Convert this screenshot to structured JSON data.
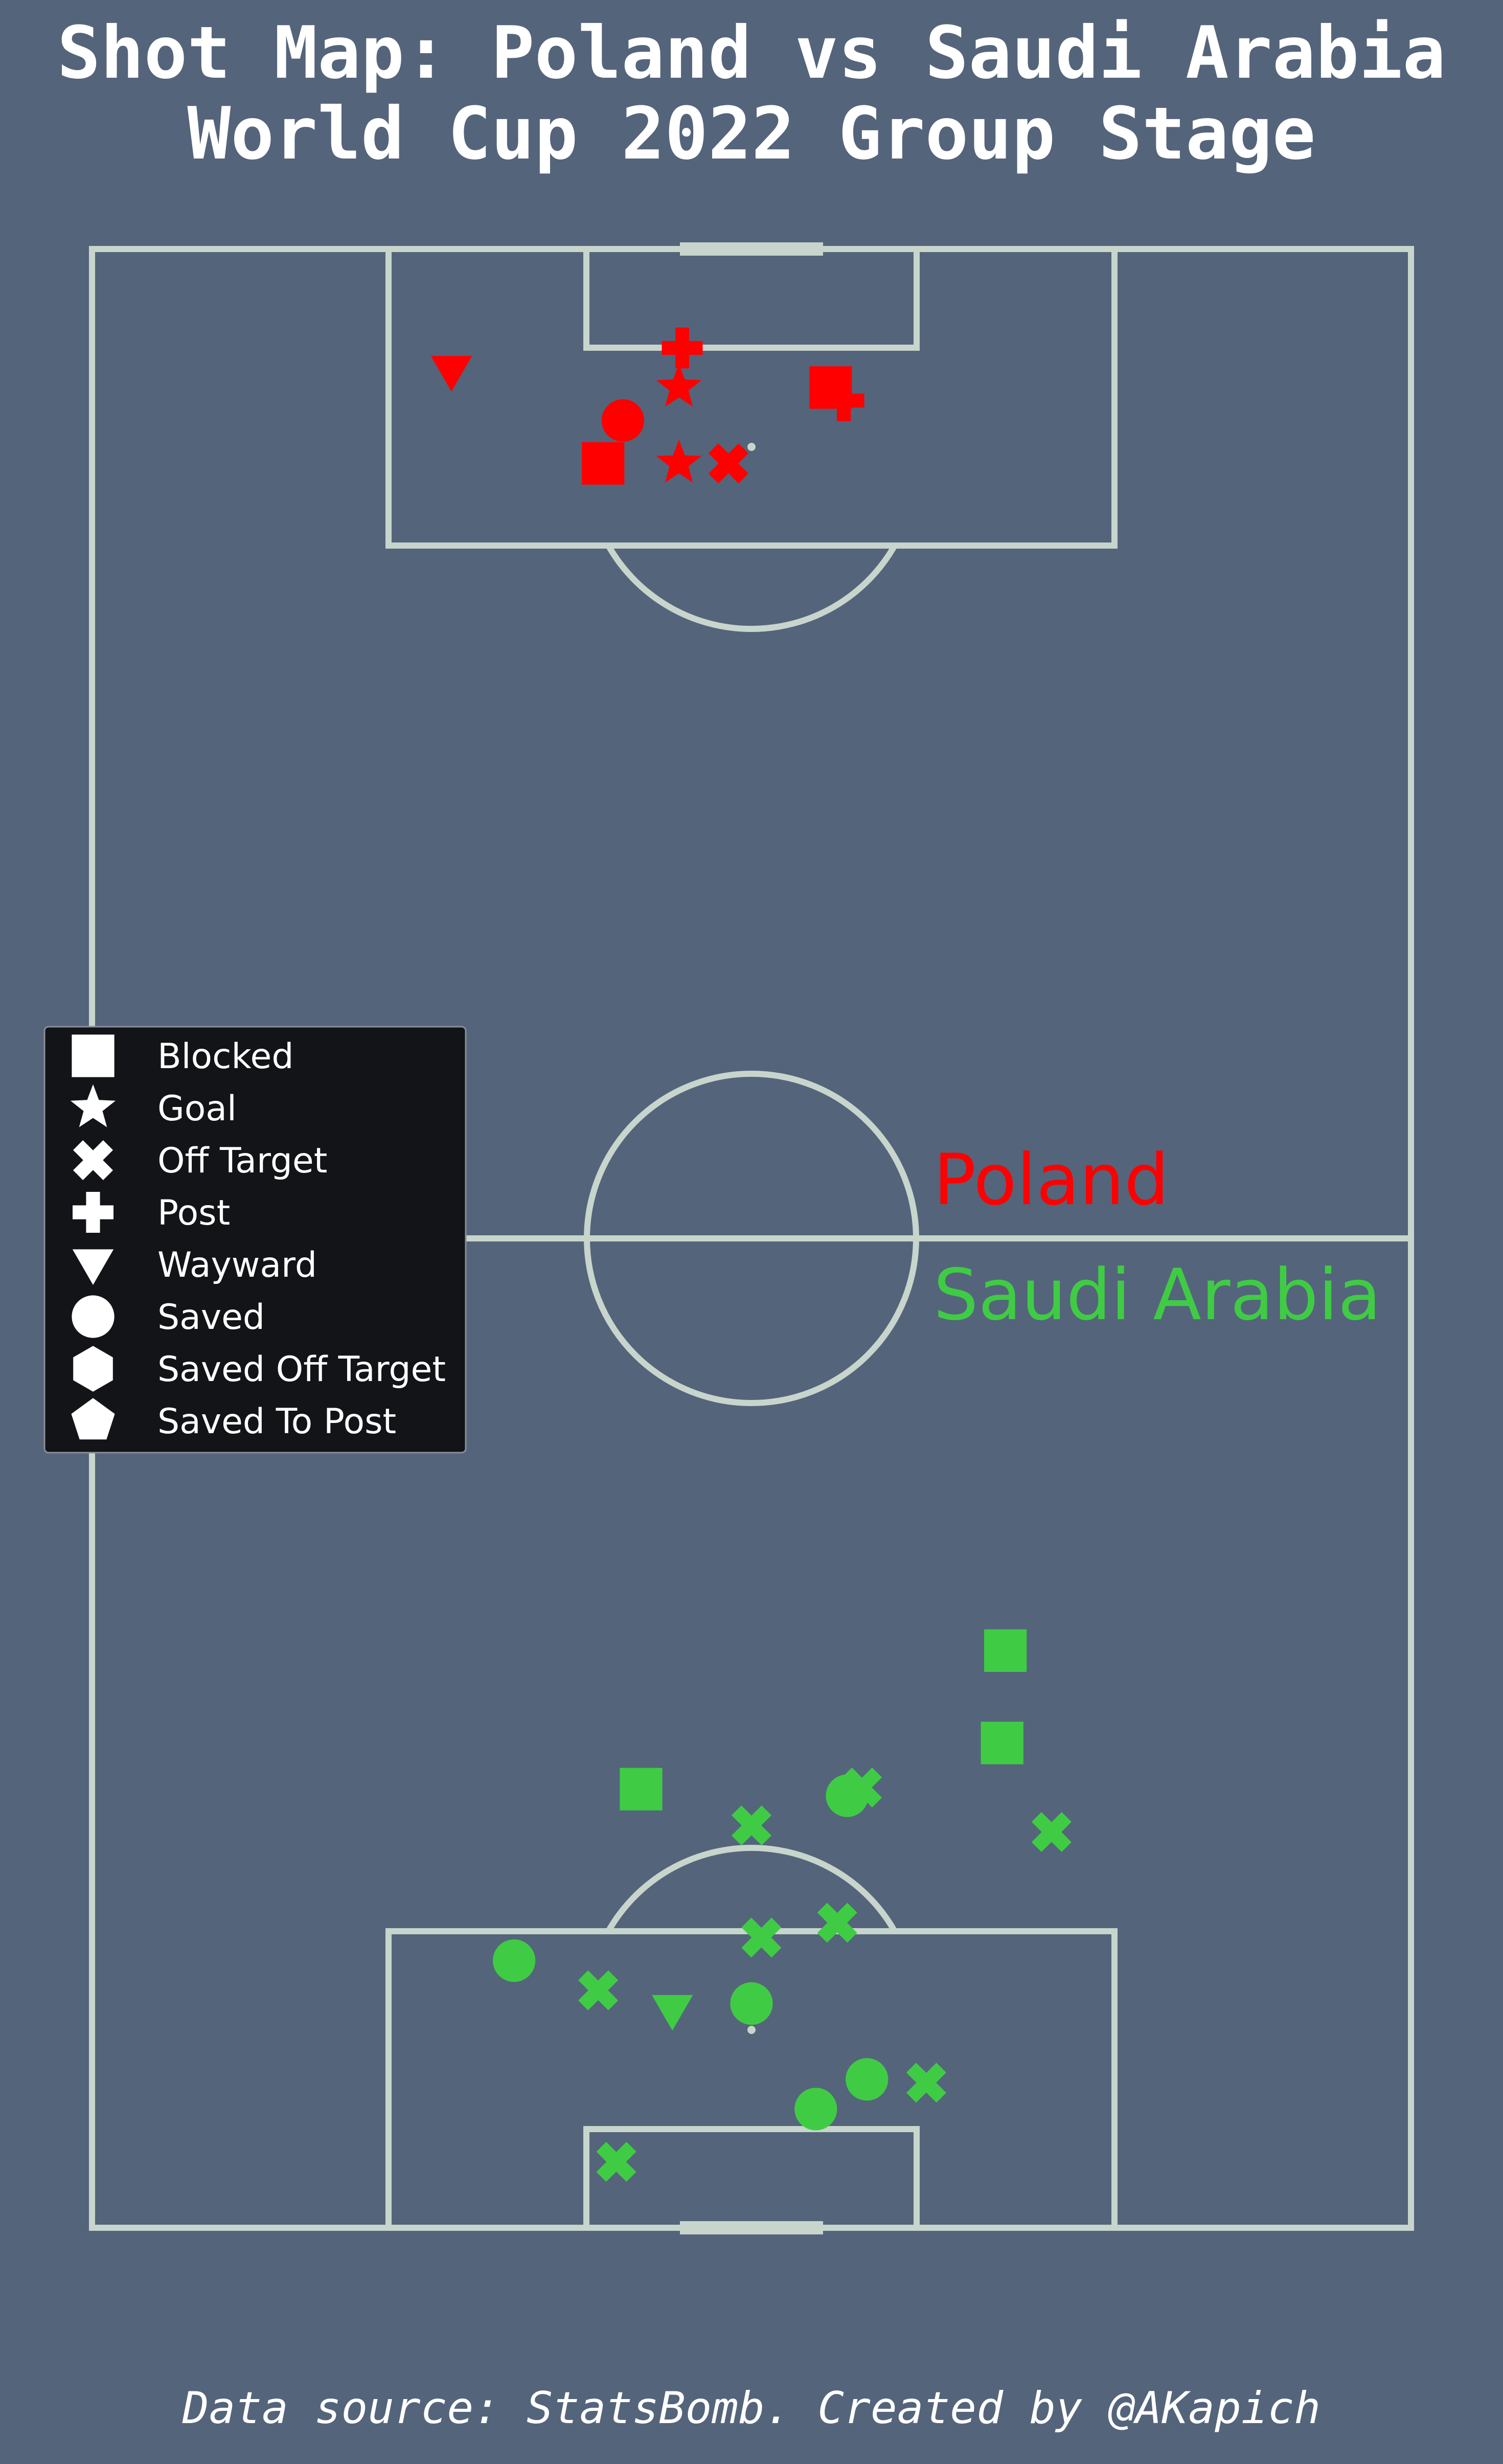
{
  "title_line1": "Shot Map: Poland vs Saudi Arabia",
  "title_line2": "World Cup 2022 Group Stage",
  "footer": "Data source: StatsBomb. Created by @AKapich",
  "colors": {
    "background": "#54647b",
    "pitch_lines": "#c7d5cc",
    "Poland": "#ff0000",
    "Saudi Arabia": "#3fcc44",
    "legend_bg": "#121418",
    "legend_text": "#ffffff"
  },
  "chart_data": {
    "type": "scatter",
    "pitch": {
      "length": 120,
      "width": 80,
      "orientation": "vertical",
      "poland_attacks": "top",
      "saudi_arabia_attacks": "bottom"
    },
    "legend": {
      "placement": "left-center",
      "entries": [
        {
          "label": "Blocked",
          "marker": "square"
        },
        {
          "label": "Goal",
          "marker": "star"
        },
        {
          "label": "Off Target",
          "marker": "x"
        },
        {
          "label": "Post",
          "marker": "plus"
        },
        {
          "label": "Wayward",
          "marker": "triangle-down"
        },
        {
          "label": "Saved",
          "marker": "circle"
        },
        {
          "label": "Saved Off Target",
          "marker": "hexagon"
        },
        {
          "label": "Saved To Post",
          "marker": "pentagon"
        }
      ]
    },
    "series": [
      {
        "name": "Poland",
        "points": [
          {
            "x": 114.0,
            "y": 44.2,
            "outcome": "Post"
          },
          {
            "x": 111.6,
            "y": 35.2,
            "outcome": "Blocked"
          },
          {
            "x": 110.8,
            "y": 34.4,
            "outcome": "Post"
          },
          {
            "x": 111.6,
            "y": 44.4,
            "outcome": "Goal"
          },
          {
            "x": 112.6,
            "y": 58.2,
            "outcome": "Wayward"
          },
          {
            "x": 109.6,
            "y": 47.8,
            "outcome": "Saved"
          },
          {
            "x": 107.0,
            "y": 41.4,
            "outcome": "Off Target"
          },
          {
            "x": 107.0,
            "y": 44.4,
            "outcome": "Goal"
          },
          {
            "x": 107.0,
            "y": 49.0,
            "outcome": "Blocked"
          }
        ]
      },
      {
        "name": "Saudi Arabia",
        "points": [
          {
            "x": 85.0,
            "y": 55.4,
            "outcome": "Blocked"
          },
          {
            "x": 90.6,
            "y": 55.2,
            "outcome": "Blocked"
          },
          {
            "x": 93.4,
            "y": 33.3,
            "outcome": "Blocked"
          },
          {
            "x": 93.3,
            "y": 46.7,
            "outcome": "Off Target"
          },
          {
            "x": 93.8,
            "y": 45.8,
            "outcome": "Saved"
          },
          {
            "x": 95.6,
            "y": 40.0,
            "outcome": "Off Target"
          },
          {
            "x": 96.0,
            "y": 58.2,
            "outcome": "Off Target"
          },
          {
            "x": 101.5,
            "y": 45.2,
            "outcome": "Off Target"
          },
          {
            "x": 102.4,
            "y": 40.6,
            "outcome": "Off Target"
          },
          {
            "x": 103.8,
            "y": 25.6,
            "outcome": "Saved"
          },
          {
            "x": 105.6,
            "y": 30.7,
            "outcome": "Off Target"
          },
          {
            "x": 106.8,
            "y": 35.2,
            "outcome": "Wayward"
          },
          {
            "x": 106.4,
            "y": 40.0,
            "outcome": "Saved"
          },
          {
            "x": 111.0,
            "y": 47.0,
            "outcome": "Saved"
          },
          {
            "x": 112.8,
            "y": 43.9,
            "outcome": "Saved"
          },
          {
            "x": 111.2,
            "y": 50.6,
            "outcome": "Off Target"
          },
          {
            "x": 116.0,
            "y": 31.8,
            "outcome": "Off Target"
          }
        ]
      }
    ]
  }
}
